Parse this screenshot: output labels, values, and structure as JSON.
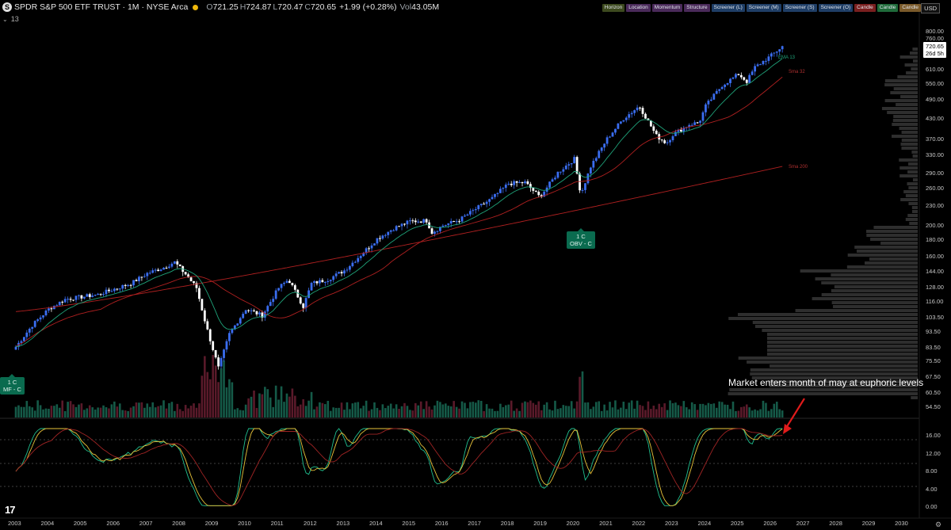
{
  "header": {
    "symbol_logo": "S",
    "title": "SPDR S&P 500 ETF TRUST · 1M · NYSE Arca",
    "ohlc": [
      {
        "k": "O",
        "v": "721.25"
      },
      {
        "k": "H",
        "v": "724.87"
      },
      {
        "k": "L",
        "v": "720.47"
      },
      {
        "k": "C",
        "v": "720.65"
      }
    ],
    "change": "+1.99 (+0.28%)",
    "vol_label": "Vol",
    "vol_value": "43.05M",
    "interval_badge": "13"
  },
  "toolbar": {
    "pills": [
      {
        "label": "Horizon",
        "bg": "#3d4a1f"
      },
      {
        "label": "Location",
        "bg": "#4a2a5a"
      },
      {
        "label": "Momentum",
        "bg": "#4a2a5a"
      },
      {
        "label": "Structure",
        "bg": "#4a2a5a"
      },
      {
        "label": "Screener (L)",
        "bg": "#1f3e66"
      },
      {
        "label": "Screener (M)",
        "bg": "#1f3e66"
      },
      {
        "label": "Screener (S)",
        "bg": "#1f3e66"
      },
      {
        "label": "Screener (O)",
        "bg": "#1f3e66"
      },
      {
        "label": "Candle",
        "bg": "#7a1f1f"
      },
      {
        "label": "Candle",
        "bg": "#1f6b3a"
      },
      {
        "label": "Candle",
        "bg": "#7a5a2a"
      }
    ],
    "currency": "USD"
  },
  "price_axis": [
    "800.00",
    "760.00",
    "670.00",
    "610.00",
    "550.00",
    "490.00",
    "430.00",
    "370.00",
    "330.00",
    "290.00",
    "260.00",
    "230.00",
    "200.00",
    "180.00",
    "160.00",
    "144.00",
    "128.00",
    "116.00",
    "103.50",
    "93.50",
    "83.50",
    "75.50",
    "67.50",
    "60.50",
    "54.50"
  ],
  "last_price": {
    "value": "720.65",
    "countdown": "26d 5h"
  },
  "osc_axis": [
    "16.00",
    "12.00",
    "8.00",
    "4.00",
    "0.00"
  ],
  "years": [
    "2003",
    "2004",
    "2005",
    "2006",
    "2007",
    "2008",
    "2009",
    "2010",
    "2011",
    "2012",
    "2013",
    "2014",
    "2015",
    "2016",
    "2017",
    "2018",
    "2019",
    "2020",
    "2021",
    "2022",
    "2023",
    "2024",
    "2025",
    "2026",
    "2027",
    "2028",
    "2029",
    "2030"
  ],
  "ma_labels": [
    {
      "text": "EMA 13",
      "color": "#1fa37a"
    },
    {
      "text": "Sma 32",
      "color": "#b03030"
    },
    {
      "text": "Sma 200",
      "color": "#b03030"
    }
  ],
  "tags": [
    {
      "line1": "1 C",
      "line2": "MF - C"
    },
    {
      "line1": "1 C",
      "line2": "OBV - C"
    }
  ],
  "annotation": "Market enters month of may at euphoric levels",
  "colors": {
    "up": "#3a6df0",
    "down": "#ffffff",
    "ema": "#1fa37a",
    "sma": "#b02020",
    "vol": "#155a48",
    "vol_dn": "#5a1a2a",
    "arrow": "#e01b1b"
  },
  "chart_data": {
    "type": "candlestick",
    "title": "SPDR S&P 500 ETF TRUST · 1M · NYSE Arca",
    "y_scale": "log",
    "ylim": [
      50,
      800
    ],
    "x_range": [
      "2003",
      "2030"
    ],
    "series_price": {
      "dates": [
        2003.0,
        2003.5,
        2004.0,
        2004.5,
        2005.0,
        2005.5,
        2006.0,
        2006.5,
        2007.0,
        2007.5,
        2007.83,
        2008.2,
        2008.5,
        2008.8,
        2009.17,
        2009.5,
        2010.0,
        2010.5,
        2011.0,
        2011.3,
        2011.75,
        2012.0,
        2012.5,
        2013.0,
        2013.5,
        2014.0,
        2014.5,
        2015.0,
        2015.5,
        2015.67,
        2016.0,
        2016.5,
        2017.0,
        2017.5,
        2018.0,
        2018.5,
        2018.95,
        2019.5,
        2020.0,
        2020.2,
        2020.5,
        2021.0,
        2021.5,
        2021.98,
        2022.5,
        2022.8,
        2023.0,
        2023.5,
        2023.8,
        2024.0,
        2024.5,
        2025.0,
        2025.25,
        2025.5,
        2026.0,
        2026.33
      ],
      "close": [
        84,
        98,
        110,
        118,
        120,
        122,
        127,
        132,
        142,
        148,
        154,
        140,
        128,
        97,
        72,
        92,
        110,
        105,
        128,
        136,
        112,
        132,
        136,
        145,
        162,
        182,
        196,
        206,
        207,
        190,
        200,
        208,
        225,
        243,
        270,
        272,
        245,
        292,
        322,
        250,
        305,
        372,
        430,
        470,
        380,
        360,
        383,
        412,
        418,
        470,
        545,
        590,
        560,
        620,
        675,
        720
      ]
    },
    "ema13_ends": {
      "start": 93,
      "end": 680
    },
    "sma32_ends": {
      "start": 120,
      "end": 600
    },
    "sma200_ends": {
      "start": 108,
      "end": 305
    },
    "oscillator": {
      "ylim": [
        0,
        18
      ],
      "value_end": 16.5
    }
  }
}
